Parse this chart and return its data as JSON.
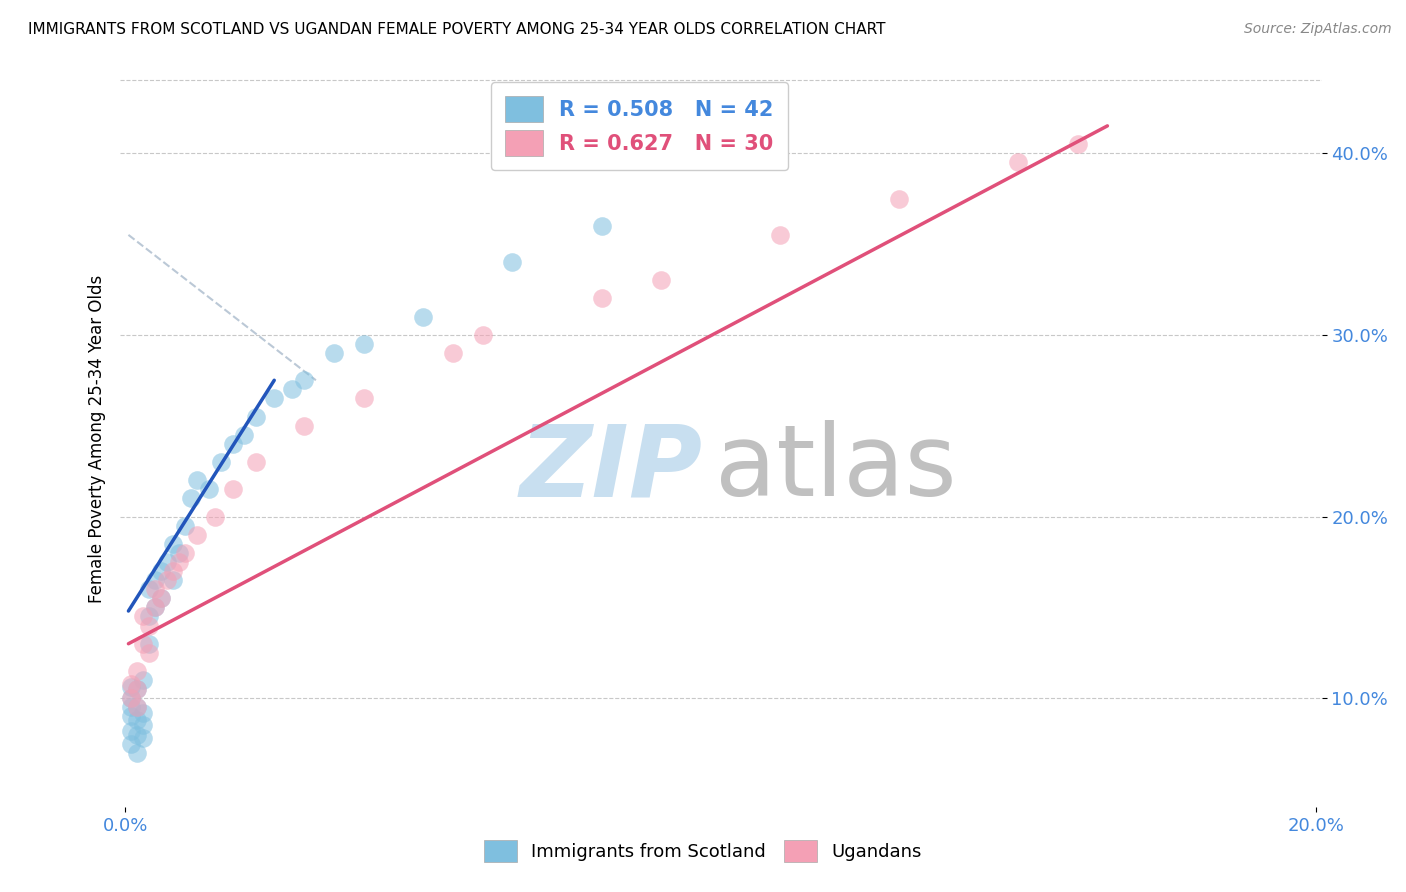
{
  "title": "IMMIGRANTS FROM SCOTLAND VS UGANDAN FEMALE POVERTY AMONG 25-34 YEAR OLDS CORRELATION CHART",
  "source": "Source: ZipAtlas.com",
  "xlabel_bottom_left": "0.0%",
  "xlabel_bottom_right": "20.0%",
  "ylabel": "Female Poverty Among 25-34 Year Olds",
  "yticks": [
    "10.0%",
    "20.0%",
    "30.0%",
    "40.0%"
  ],
  "ytick_values": [
    0.1,
    0.2,
    0.3,
    0.4
  ],
  "xlim": [
    -0.001,
    0.201
  ],
  "ylim": [
    0.04,
    0.445
  ],
  "legend_r1": "R = 0.508",
  "legend_n1": "N = 42",
  "legend_r2": "R = 0.627",
  "legend_n2": "N = 30",
  "color_blue": "#7fbfdf",
  "color_pink": "#f4a0b5",
  "watermark_zip": "ZIP",
  "watermark_atlas": "atlas",
  "scotland_x": [
    0.001,
    0.001,
    0.001,
    0.001,
    0.001,
    0.001,
    0.002,
    0.002,
    0.002,
    0.002,
    0.002,
    0.003,
    0.003,
    0.003,
    0.003,
    0.004,
    0.004,
    0.004,
    0.005,
    0.005,
    0.006,
    0.006,
    0.007,
    0.008,
    0.008,
    0.009,
    0.01,
    0.011,
    0.012,
    0.014,
    0.016,
    0.018,
    0.02,
    0.022,
    0.025,
    0.028,
    0.03,
    0.035,
    0.04,
    0.05,
    0.065,
    0.08
  ],
  "scotland_y": [
    0.075,
    0.082,
    0.09,
    0.095,
    0.1,
    0.106,
    0.07,
    0.08,
    0.088,
    0.095,
    0.105,
    0.078,
    0.085,
    0.092,
    0.11,
    0.13,
    0.145,
    0.16,
    0.15,
    0.165,
    0.155,
    0.17,
    0.175,
    0.165,
    0.185,
    0.18,
    0.195,
    0.21,
    0.22,
    0.215,
    0.23,
    0.24,
    0.245,
    0.255,
    0.265,
    0.27,
    0.275,
    0.29,
    0.295,
    0.31,
    0.34,
    0.36
  ],
  "uganda_x": [
    0.001,
    0.001,
    0.002,
    0.002,
    0.002,
    0.003,
    0.003,
    0.004,
    0.004,
    0.005,
    0.005,
    0.006,
    0.007,
    0.008,
    0.009,
    0.01,
    0.012,
    0.015,
    0.018,
    0.022,
    0.03,
    0.04,
    0.055,
    0.06,
    0.08,
    0.09,
    0.11,
    0.13,
    0.15,
    0.16
  ],
  "uganda_y": [
    0.1,
    0.108,
    0.095,
    0.105,
    0.115,
    0.13,
    0.145,
    0.125,
    0.14,
    0.15,
    0.16,
    0.155,
    0.165,
    0.17,
    0.175,
    0.18,
    0.19,
    0.2,
    0.215,
    0.23,
    0.25,
    0.265,
    0.29,
    0.3,
    0.32,
    0.33,
    0.355,
    0.375,
    0.395,
    0.405
  ],
  "blue_line_x": [
    0.0005,
    0.025
  ],
  "blue_line_y": [
    0.148,
    0.275
  ],
  "pink_line_x": [
    0.0005,
    0.165
  ],
  "pink_line_y": [
    0.13,
    0.415
  ],
  "dash_line_x": [
    0.0005,
    0.032
  ],
  "dash_line_y": [
    0.355,
    0.275
  ]
}
